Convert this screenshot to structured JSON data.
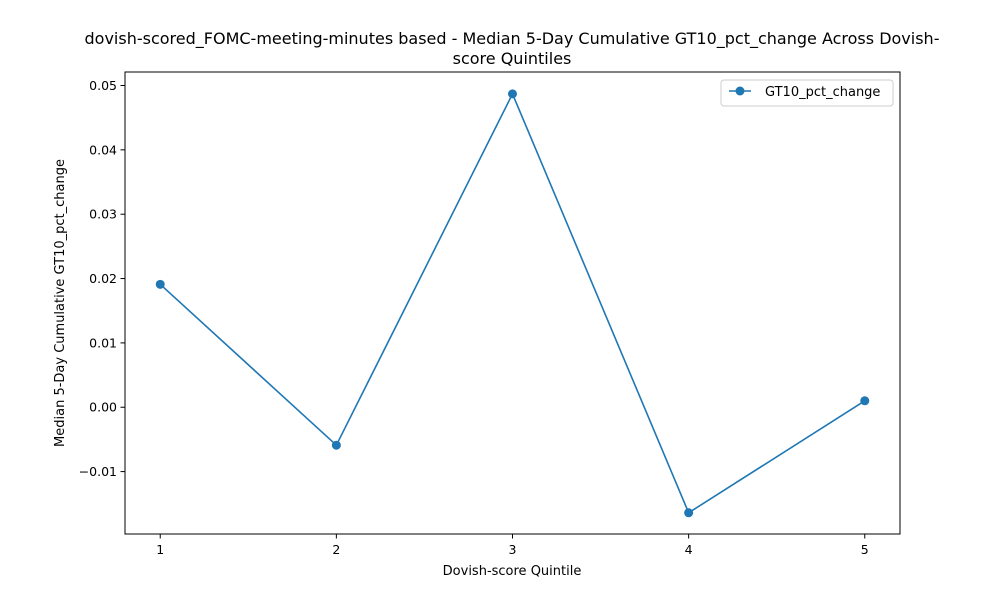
{
  "chart_data": {
    "type": "line",
    "title_lines": [
      "dovish-scored_FOMC-meeting-minutes based - Median 5-Day Cumulative GT10_pct_change Across Dovish-",
      "score Quintiles"
    ],
    "xlabel": "Dovish-score Quintile",
    "ylabel": "Median 5-Day Cumulative GT10_pct_change",
    "x": [
      1,
      2,
      3,
      4,
      5
    ],
    "x_tick_labels": [
      "1",
      "2",
      "3",
      "4",
      "5"
    ],
    "y_ticks": [
      -0.01,
      0.0,
      0.01,
      0.02,
      0.03,
      0.04,
      0.05
    ],
    "y_tick_labels": [
      "−0.01",
      "0.00",
      "0.01",
      "0.02",
      "0.03",
      "0.04",
      "0.05"
    ],
    "xlim": [
      0.8,
      5.2
    ],
    "ylim": [
      -0.0197,
      0.0521
    ],
    "series": [
      {
        "name": "GT10_pct_change",
        "color": "#1f77b4",
        "marker": "circle",
        "values": [
          0.0191,
          -0.0059,
          0.0487,
          -0.0164,
          0.001
        ]
      }
    ],
    "legend_position": "top-right",
    "grid": false
  }
}
